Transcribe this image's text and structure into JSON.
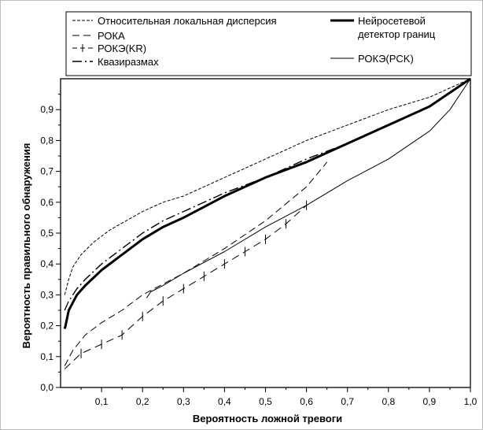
{
  "chart_data": {
    "type": "line",
    "title": "",
    "xlabel": "Вероятность ложной тревоги",
    "ylabel": "Вероятность правильного обнаружения",
    "xlim": [
      0,
      1.0
    ],
    "ylim": [
      0,
      1.0
    ],
    "x_ticks": [
      "0,1",
      "0,2",
      "0,3",
      "0,4",
      "0,5",
      "0,6",
      "0,7",
      "0,8",
      "0,9",
      "1,0"
    ],
    "y_ticks": [
      "0,0",
      "0,1",
      "0,2",
      "0,3",
      "0,4",
      "0,5",
      "0,6",
      "0,7",
      "0,8",
      "0,9"
    ],
    "grid": false,
    "legend_position": "top",
    "series": [
      {
        "name": "Относительная локальная дисперсия",
        "style": "short-dash",
        "x": [
          0.01,
          0.02,
          0.03,
          0.05,
          0.08,
          0.12,
          0.16,
          0.2,
          0.25,
          0.3,
          0.4,
          0.5,
          0.6,
          0.7,
          0.8,
          0.9,
          1.0
        ],
        "y": [
          0.3,
          0.35,
          0.39,
          0.43,
          0.47,
          0.51,
          0.54,
          0.57,
          0.6,
          0.62,
          0.68,
          0.74,
          0.8,
          0.85,
          0.9,
          0.94,
          1.0
        ]
      },
      {
        "name": "РОКА",
        "style": "long-dash",
        "x": [
          0.01,
          0.03,
          0.06,
          0.1,
          0.15,
          0.2,
          0.3,
          0.4,
          0.5,
          0.6,
          0.65
        ],
        "y": [
          0.07,
          0.12,
          0.17,
          0.21,
          0.25,
          0.3,
          0.37,
          0.45,
          0.54,
          0.65,
          0.73
        ]
      },
      {
        "name": "РОКЭ(KR)",
        "style": "dash-tick",
        "x": [
          0.01,
          0.05,
          0.1,
          0.15,
          0.2,
          0.25,
          0.3,
          0.35,
          0.4,
          0.45,
          0.5,
          0.55,
          0.6
        ],
        "y": [
          0.06,
          0.11,
          0.14,
          0.17,
          0.23,
          0.28,
          0.32,
          0.36,
          0.4,
          0.44,
          0.48,
          0.53,
          0.59
        ]
      },
      {
        "name": "Квазиразмах",
        "style": "dash-dot",
        "x": [
          0.01,
          0.02,
          0.04,
          0.06,
          0.1,
          0.15,
          0.2,
          0.25,
          0.3,
          0.4,
          0.5,
          0.6,
          0.7,
          0.8,
          0.9,
          1.0
        ],
        "y": [
          0.25,
          0.28,
          0.32,
          0.35,
          0.4,
          0.45,
          0.5,
          0.54,
          0.57,
          0.63,
          0.68,
          0.74,
          0.79,
          0.85,
          0.91,
          1.0
        ]
      },
      {
        "name": "Нейросетевой детектор границ",
        "style": "bold",
        "x": [
          0.01,
          0.012,
          0.02,
          0.04,
          0.06,
          0.1,
          0.15,
          0.2,
          0.25,
          0.3,
          0.4,
          0.5,
          0.6,
          0.7,
          0.8,
          0.9,
          1.0
        ],
        "y": [
          0.19,
          0.2,
          0.25,
          0.3,
          0.33,
          0.38,
          0.43,
          0.48,
          0.52,
          0.55,
          0.62,
          0.68,
          0.73,
          0.79,
          0.85,
          0.91,
          1.0
        ]
      },
      {
        "name": "РОКЭ(PCK)",
        "style": "thin",
        "x": [
          0.21,
          0.22,
          0.25,
          0.3,
          0.4,
          0.5,
          0.6,
          0.7,
          0.8,
          0.9,
          0.95,
          1.0
        ],
        "y": [
          0.29,
          0.31,
          0.33,
          0.37,
          0.44,
          0.52,
          0.59,
          0.67,
          0.74,
          0.83,
          0.9,
          1.0
        ]
      }
    ]
  }
}
